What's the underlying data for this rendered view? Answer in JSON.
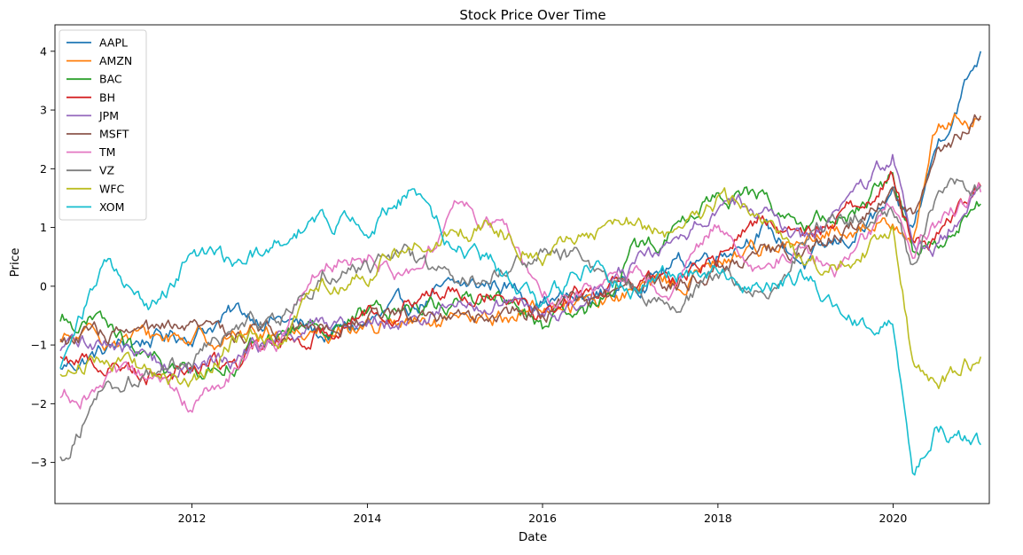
{
  "chart_data": {
    "type": "line",
    "title": "Stock Price Over Time",
    "xlabel": "Date",
    "ylabel": "Price",
    "x_ticks": [
      "2012",
      "2014",
      "2016",
      "2018",
      "2020"
    ],
    "y_ticks": [
      "−3",
      "−2",
      "−1",
      "0",
      "1",
      "2",
      "3",
      "4"
    ],
    "xlim": [
      "2010-06-09",
      "2021-02-05"
    ],
    "ylim": [
      -3.7,
      4.45
    ],
    "grid": false,
    "legend_position": "upper-left",
    "x": [
      "2010-07-01",
      "2011-01-01",
      "2011-07-01",
      "2012-01-01",
      "2012-07-01",
      "2013-01-01",
      "2013-07-01",
      "2014-01-01",
      "2014-07-01",
      "2015-01-01",
      "2015-07-01",
      "2016-01-01",
      "2016-07-01",
      "2017-01-01",
      "2017-07-01",
      "2018-01-01",
      "2018-07-01",
      "2019-01-01",
      "2019-07-01",
      "2020-01-01",
      "2020-03-23",
      "2020-07-01",
      "2020-12-31"
    ],
    "series": [
      {
        "name": "AAPL",
        "color": "#1f77b4",
        "values": [
          -1.4,
          -1.1,
          -0.9,
          -0.8,
          -0.45,
          -0.55,
          -0.85,
          -0.65,
          -0.35,
          -0.05,
          0.05,
          -0.2,
          -0.25,
          0.05,
          0.35,
          0.6,
          1.0,
          0.4,
          0.8,
          1.4,
          0.9,
          2.4,
          4.0
        ]
      },
      {
        "name": "AMZN",
        "color": "#ff7f0e",
        "values": [
          -0.95,
          -0.88,
          -0.88,
          -0.85,
          -0.82,
          -0.78,
          -0.72,
          -0.65,
          -0.68,
          -0.7,
          -0.55,
          -0.35,
          -0.25,
          -0.12,
          0.05,
          0.35,
          0.75,
          0.65,
          1.0,
          1.1,
          1.0,
          2.7,
          2.85
        ]
      },
      {
        "name": "BAC",
        "color": "#2ca02c",
        "values": [
          -0.6,
          -0.65,
          -1.3,
          -1.5,
          -1.2,
          -0.85,
          -0.6,
          -0.5,
          -0.35,
          -0.25,
          -0.15,
          -0.7,
          -0.55,
          0.5,
          0.9,
          1.6,
          1.5,
          1.0,
          1.2,
          1.9,
          0.6,
          0.8,
          1.4
        ]
      },
      {
        "name": "BH",
        "color": "#d62728",
        "values": [
          -1.2,
          -1.3,
          -1.45,
          -1.35,
          -1.3,
          -0.95,
          -0.75,
          -0.4,
          -0.3,
          0.05,
          0.0,
          -0.4,
          -0.1,
          0.0,
          0.1,
          0.45,
          1.2,
          0.8,
          1.3,
          1.9,
          0.7,
          0.9,
          1.7
        ]
      },
      {
        "name": "JPM",
        "color": "#9467bd",
        "values": [
          -1.1,
          -0.9,
          -1.25,
          -1.4,
          -1.2,
          -0.9,
          -0.65,
          -0.55,
          -0.5,
          -0.4,
          -0.3,
          -0.55,
          -0.25,
          0.3,
          0.6,
          1.5,
          1.3,
          0.8,
          1.3,
          2.3,
          0.6,
          0.7,
          1.7
        ]
      },
      {
        "name": "MSFT",
        "color": "#8c564b",
        "values": [
          -0.9,
          -0.85,
          -0.85,
          -0.8,
          -0.75,
          -0.7,
          -0.6,
          -0.55,
          -0.45,
          -0.4,
          -0.5,
          -0.4,
          -0.25,
          -0.1,
          0.1,
          0.35,
          0.6,
          0.5,
          1.0,
          1.6,
          1.1,
          2.3,
          2.9
        ]
      },
      {
        "name": "TM",
        "color": "#e377c2",
        "values": [
          -1.9,
          -1.7,
          -1.6,
          -2.0,
          -1.4,
          -1.0,
          0.5,
          0.6,
          0.2,
          1.3,
          1.1,
          -0.25,
          -0.05,
          0.15,
          0.0,
          1.0,
          0.4,
          0.6,
          0.3,
          1.4,
          0.7,
          1.0,
          1.6
        ]
      },
      {
        "name": "VZ",
        "color": "#7f7f7f",
        "values": [
          -2.9,
          -1.7,
          -1.5,
          -1.2,
          -0.75,
          -0.55,
          0.3,
          0.35,
          0.45,
          0.1,
          0.25,
          0.6,
          0.4,
          -0.1,
          -0.3,
          0.2,
          -0.2,
          0.8,
          1.2,
          1.4,
          0.3,
          1.5,
          1.7
        ]
      },
      {
        "name": "WFC",
        "color": "#bcbd22",
        "values": [
          -1.5,
          -1.1,
          -1.5,
          -1.7,
          -0.9,
          -0.8,
          0.0,
          0.3,
          0.7,
          0.9,
          1.0,
          0.6,
          1.0,
          1.1,
          0.8,
          1.5,
          1.2,
          0.3,
          0.5,
          0.9,
          -1.3,
          -1.6,
          -1.2
        ]
      },
      {
        "name": "XOM",
        "color": "#17becf",
        "values": [
          -1.4,
          0.4,
          -0.4,
          0.5,
          0.3,
          0.7,
          1.2,
          1.0,
          1.6,
          0.6,
          0.3,
          -0.4,
          0.3,
          0.0,
          0.2,
          0.3,
          -0.1,
          0.2,
          -0.4,
          -0.7,
          -3.3,
          -2.4,
          -2.7
        ]
      }
    ]
  }
}
